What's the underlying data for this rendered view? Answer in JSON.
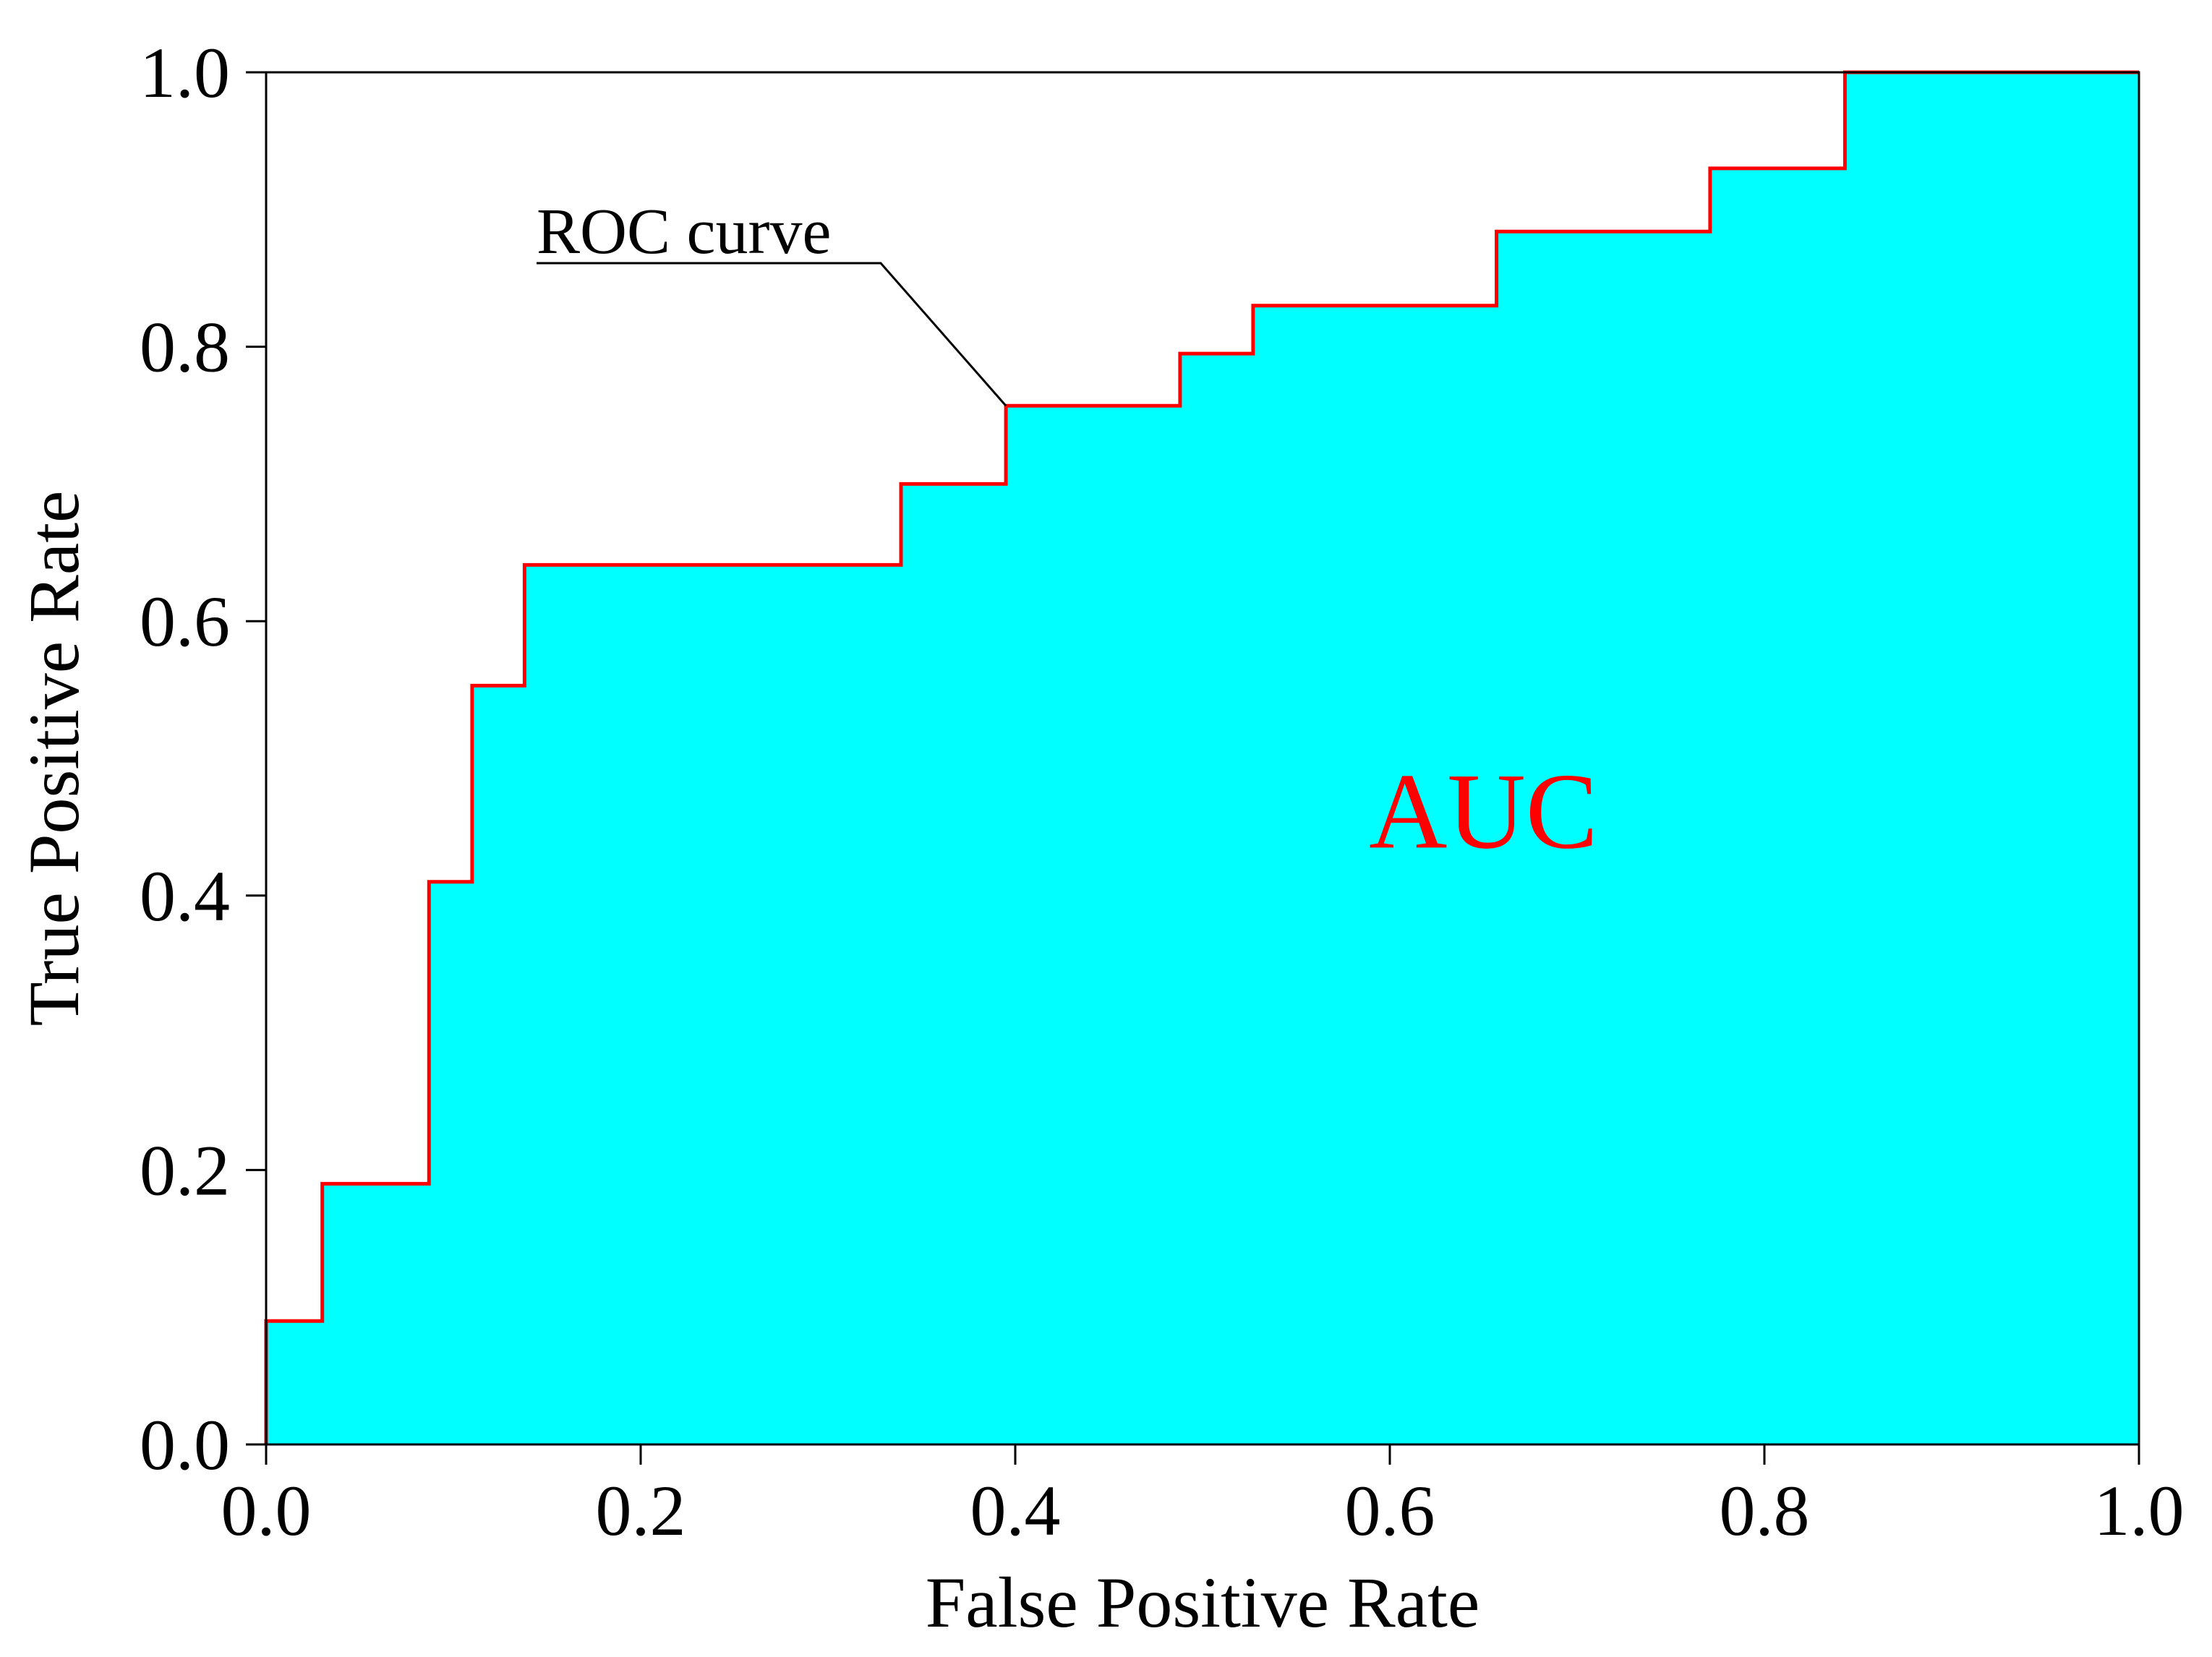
{
  "chart_data": {
    "type": "area",
    "xlabel": "False Positive Rate",
    "ylabel": "True Positive Rate",
    "xlim": [
      0.0,
      1.0
    ],
    "ylim": [
      0.0,
      1.0
    ],
    "xticks": [
      "0.0",
      "0.2",
      "0.4",
      "0.6",
      "0.8",
      "1.0"
    ],
    "yticks": [
      "0.0",
      "0.2",
      "0.4",
      "0.6",
      "0.8",
      "1.0"
    ],
    "grid": false,
    "series": [
      {
        "step": "post",
        "x": [
          0.0,
          0.03,
          0.087,
          0.11,
          0.138,
          0.339,
          0.395,
          0.488,
          0.527,
          0.657,
          0.771,
          0.843,
          1.0
        ],
        "y": [
          0.09,
          0.19,
          0.41,
          0.553,
          0.641,
          0.7,
          0.757,
          0.795,
          0.83,
          0.884,
          0.93,
          1.0,
          1.0
        ]
      }
    ],
    "annotations": [
      {
        "text": "ROC curve",
        "x": 0.395,
        "y": 0.757
      },
      {
        "text": "AUC",
        "x": 0.65,
        "y": 0.435
      }
    ],
    "colors": {
      "fill": "#00FFFF",
      "curve": "#FF0000",
      "auc_text": "#FF0000",
      "axis": "#000000"
    }
  }
}
